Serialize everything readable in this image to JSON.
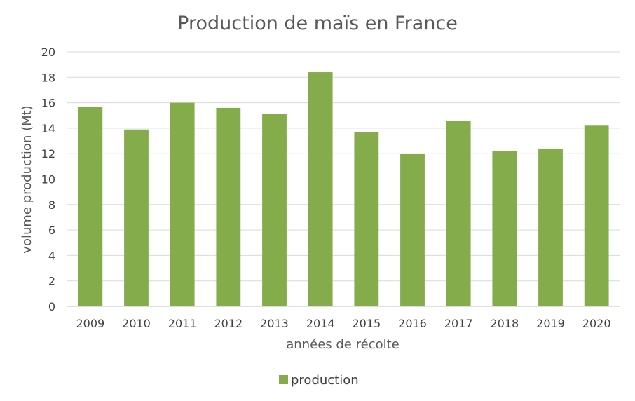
{
  "chart_data": {
    "type": "bar",
    "title": "Production de maïs en France",
    "xlabel": "années de récolte",
    "ylabel": "volume production (Mt)",
    "categories": [
      "2009",
      "2010",
      "2011",
      "2012",
      "2013",
      "2014",
      "2015",
      "2016",
      "2017",
      "2018",
      "2019",
      "2020"
    ],
    "series": [
      {
        "name": "production",
        "values": [
          15.7,
          13.9,
          16.0,
          15.6,
          15.1,
          18.4,
          13.7,
          12.0,
          14.6,
          12.2,
          12.4,
          14.2
        ]
      }
    ],
    "ylim": [
      0,
      20
    ],
    "yticks": [
      0,
      2,
      4,
      6,
      8,
      10,
      12,
      14,
      16,
      18,
      20
    ],
    "grid": true,
    "legend": "bottom",
    "colors": {
      "bar": "#84ac4b",
      "grid": "#d9d9d9",
      "axis": "#bfbfbf"
    }
  }
}
